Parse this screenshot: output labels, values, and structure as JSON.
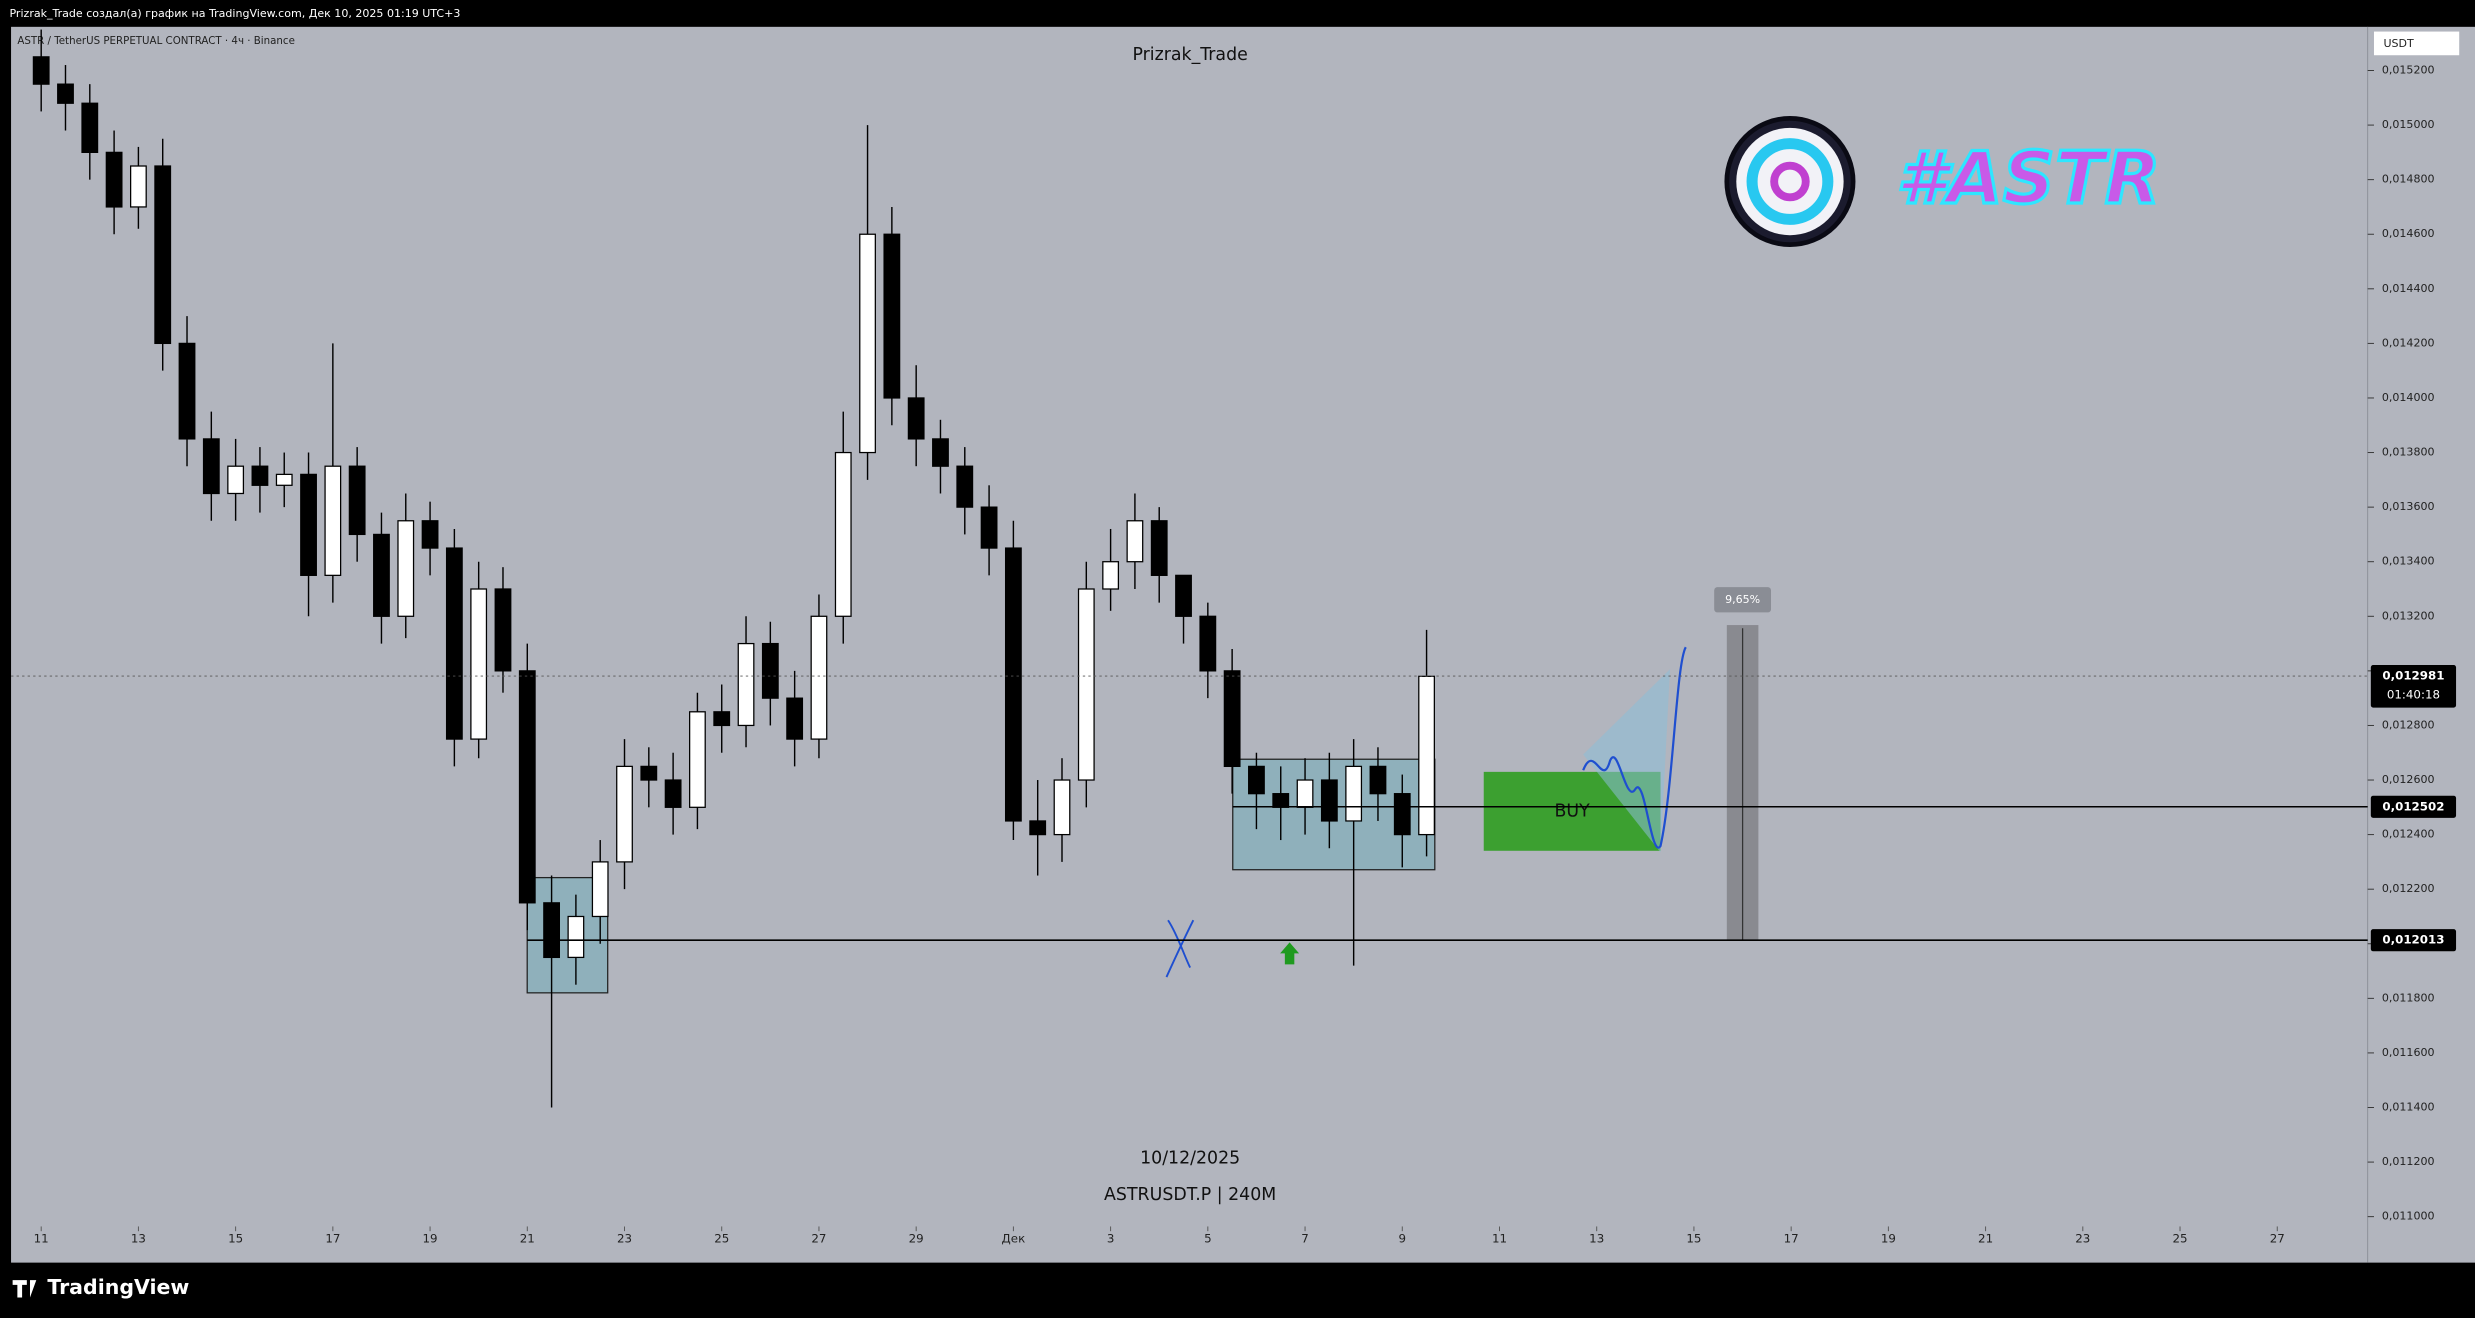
{
  "header": {
    "text": "Prizrak_Trade создал(а) график на TradingView.com, Дек 10, 2025 01:19 UTC+3"
  },
  "footer": {
    "brand": "TradingView"
  },
  "chart_data": {
    "type": "candlestick",
    "title": "Prizrak_Trade",
    "symbol": "ASTR / TetherUS PERPETUAL CONTRACT · 4ч · Binance",
    "watermark_date": "10/12/2025",
    "watermark_symbol": "ASTRUSDT.P | 240M",
    "currency": "USDT",
    "logo_text": "#ASTR",
    "buy_label": "BUY",
    "measure_label": "9,65%",
    "countdown": "01:40:18",
    "colors": {
      "up": "#ffffff",
      "down": "#000000",
      "background": "#b2b5be"
    },
    "x": [
      11,
      11.5,
      12,
      12.5,
      13,
      13.5,
      14,
      14.5,
      15,
      15.5,
      16,
      16.5,
      17,
      17.5,
      18,
      18.5,
      19,
      19.5,
      20,
      20.5,
      21,
      21.5,
      22,
      22.5,
      23,
      23.5,
      24,
      24.5,
      25,
      25.5,
      26,
      26.5,
      27,
      27.5,
      28,
      28.5,
      29,
      29.5,
      30,
      30.5,
      31,
      31.5,
      32,
      32.5,
      33,
      33.5,
      34,
      34.5,
      35,
      35.5,
      36,
      36.5,
      37,
      37.5,
      38,
      38.5,
      39,
      39.5
    ],
    "open": [
      0.01525,
      0.01515,
      0.01508,
      0.0149,
      0.0147,
      0.01485,
      0.0142,
      0.01385,
      0.01365,
      0.01375,
      0.01368,
      0.01372,
      0.01335,
      0.01375,
      0.0135,
      0.0132,
      0.01355,
      0.01345,
      0.01275,
      0.0133,
      0.013,
      0.01215,
      0.01195,
      0.0121,
      0.0123,
      0.01265,
      0.0126,
      0.0125,
      0.01285,
      0.0128,
      0.0131,
      0.0129,
      0.01275,
      0.0132,
      0.0138,
      0.0146,
      0.014,
      0.01385,
      0.01375,
      0.0136,
      0.01345,
      0.01245,
      0.0124,
      0.0126,
      0.0133,
      0.0134,
      0.01355,
      0.01335,
      0.0132,
      0.013,
      0.01265,
      0.01255,
      0.0125,
      0.0126,
      0.01245,
      0.01265,
      0.01255,
      0.0124
    ],
    "high": [
      0.01535,
      0.01522,
      0.01515,
      0.01498,
      0.01492,
      0.01495,
      0.0143,
      0.01395,
      0.01385,
      0.01382,
      0.0138,
      0.0138,
      0.0142,
      0.01382,
      0.01358,
      0.01365,
      0.01362,
      0.01352,
      0.0134,
      0.01338,
      0.0131,
      0.01225,
      0.01218,
      0.01238,
      0.01275,
      0.01272,
      0.0127,
      0.01292,
      0.01295,
      0.0132,
      0.01318,
      0.013,
      0.01328,
      0.01395,
      0.015,
      0.0147,
      0.01412,
      0.01392,
      0.01382,
      0.01368,
      0.01355,
      0.0126,
      0.01268,
      0.0134,
      0.01352,
      0.01365,
      0.0136,
      0.01332,
      0.01325,
      0.01308,
      0.0127,
      0.01265,
      0.01268,
      0.0127,
      0.01275,
      0.01272,
      0.01262,
      0.01315
    ],
    "low": [
      0.01505,
      0.01498,
      0.0148,
      0.0146,
      0.01462,
      0.0141,
      0.01375,
      0.01355,
      0.01355,
      0.01358,
      0.0136,
      0.0132,
      0.01325,
      0.0134,
      0.0131,
      0.01312,
      0.01335,
      0.01265,
      0.01268,
      0.01292,
      0.01205,
      0.0114,
      0.01185,
      0.012,
      0.0122,
      0.0125,
      0.0124,
      0.01242,
      0.0127,
      0.01272,
      0.0128,
      0.01265,
      0.01268,
      0.0131,
      0.0137,
      0.0139,
      0.01375,
      0.01365,
      0.0135,
      0.01335,
      0.01238,
      0.01225,
      0.0123,
      0.0125,
      0.01322,
      0.0133,
      0.01325,
      0.0131,
      0.0129,
      0.01255,
      0.01242,
      0.01238,
      0.0124,
      0.01235,
      0.01192,
      0.01245,
      0.01228,
      0.01232
    ],
    "close": [
      0.01515,
      0.01508,
      0.0149,
      0.0147,
      0.01485,
      0.0142,
      0.01385,
      0.01365,
      0.01375,
      0.01368,
      0.01372,
      0.01335,
      0.01375,
      0.0135,
      0.0132,
      0.01355,
      0.01345,
      0.01275,
      0.0133,
      0.013,
      0.01215,
      0.01195,
      0.0121,
      0.0123,
      0.01265,
      0.0126,
      0.0125,
      0.01285,
      0.0128,
      0.0131,
      0.0129,
      0.01275,
      0.0132,
      0.0138,
      0.0146,
      0.014,
      0.01385,
      0.01375,
      0.0136,
      0.01345,
      0.01245,
      0.0124,
      0.0126,
      0.0133,
      0.0134,
      0.01355,
      0.01335,
      0.0132,
      0.013,
      0.01265,
      0.01255,
      0.0125,
      0.0126,
      0.01245,
      0.01265,
      0.01255,
      0.0124,
      0.01298
    ],
    "xlim": [
      10.38,
      58.86
    ],
    "ylim": [
      0.01086,
      0.01536
    ],
    "xticks": [
      11,
      13,
      15,
      17,
      19,
      21,
      23,
      25,
      27,
      29,
      {
        "value": 31,
        "label": "Дек"
      },
      {
        "value": 33,
        "label": "3"
      },
      {
        "value": 35,
        "label": "5"
      },
      {
        "value": 37,
        "label": "7"
      },
      {
        "value": 39,
        "label": "9"
      },
      {
        "value": 41,
        "label": "11"
      },
      {
        "value": 43,
        "label": "13"
      },
      {
        "value": 45,
        "label": "15"
      },
      {
        "value": 47,
        "label": "17"
      },
      {
        "value": 49,
        "label": "19"
      },
      {
        "value": 51,
        "label": "21"
      },
      {
        "value": 53,
        "label": "23"
      },
      {
        "value": 55,
        "label": "25"
      },
      {
        "value": 57,
        "label": "27"
      }
    ],
    "yticks": [
      {
        "value": 0.011,
        "label": "0,011000"
      },
      {
        "value": 0.0112,
        "label": "0,011200"
      },
      {
        "value": 0.0114,
        "label": "0,011400"
      },
      {
        "value": 0.0116,
        "label": "0,011600"
      },
      {
        "value": 0.0118,
        "label": "0,011800"
      },
      {
        "value": 0.012,
        "label": "0,012000"
      },
      {
        "value": 0.0122,
        "label": "0,012200"
      },
      {
        "value": 0.0124,
        "label": "0,012400"
      },
      {
        "value": 0.0126,
        "label": "0,012600"
      },
      {
        "value": 0.0128,
        "label": "0,012800"
      },
      {
        "value": 0.013,
        "label": "0,013000"
      },
      {
        "value": 0.0132,
        "label": "0,013200"
      },
      {
        "value": 0.0134,
        "label": "0,013400"
      },
      {
        "value": 0.0136,
        "label": "0,013600"
      },
      {
        "value": 0.0138,
        "label": "0,013800"
      },
      {
        "value": 0.014,
        "label": "0,014000"
      },
      {
        "value": 0.0142,
        "label": "0,014200"
      },
      {
        "value": 0.0144,
        "label": "0,014400"
      },
      {
        "value": 0.0146,
        "label": "0,014600"
      },
      {
        "value": 0.0148,
        "label": "0,014800"
      },
      {
        "value": 0.015,
        "label": "0,015000"
      },
      {
        "value": 0.0152,
        "label": "0,015200"
      }
    ],
    "price_lines": [
      {
        "value": 0.012981,
        "label": "0,012981",
        "style": "dotted"
      },
      {
        "value": 0.012502,
        "label": "0,012502",
        "style": "solid"
      },
      {
        "value": 0.012013,
        "label": "0,012013",
        "style": "solid"
      }
    ]
  }
}
